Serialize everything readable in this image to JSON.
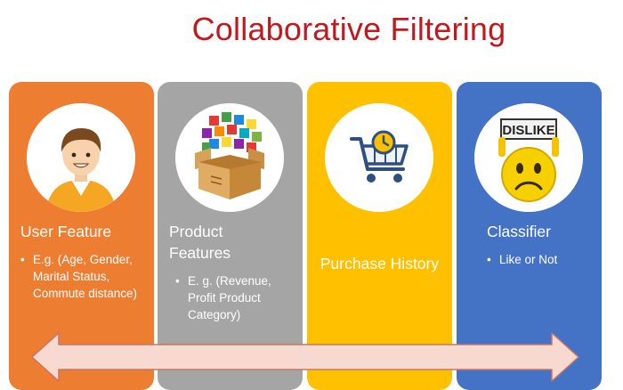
{
  "title": "Collaborative Filtering",
  "panels": [
    {
      "title": "User Feature",
      "bullets": [
        "E.g. (Age, Gender, Marital Status, Commute distance)"
      ],
      "icon": "user-avatar-icon",
      "color": "#ed7d31"
    },
    {
      "title": "Product Features",
      "bullets": [
        "E. g. (Revenue, Profit Product Category)"
      ],
      "icon": "product-box-icon",
      "color": "#a5a5a5"
    },
    {
      "title": "Purchase History",
      "bullets": [],
      "icon": "shopping-cart-clock-icon",
      "color": "#ffc000"
    },
    {
      "title": "Classifier",
      "bullets": [
        "Like or  Not"
      ],
      "icon": "dislike-sign-icon",
      "icon_text": "DISLIKE",
      "color": "#4472c4"
    }
  ],
  "arrow": {
    "color": "#f8d9d0",
    "stroke": "#c27769",
    "icon": "double-headed-arrow-icon"
  }
}
